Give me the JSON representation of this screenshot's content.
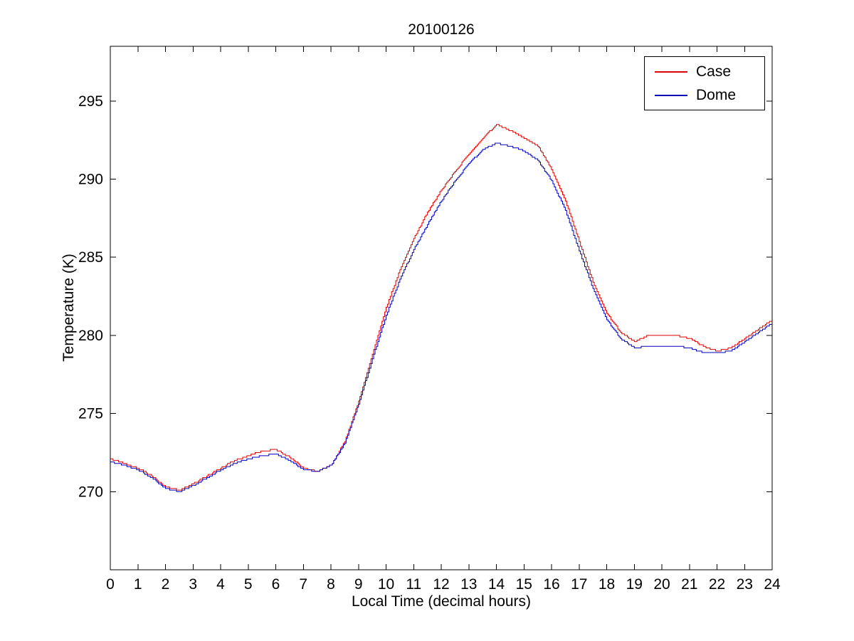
{
  "chart_data": {
    "type": "line",
    "title": "20100126",
    "xlabel": "Local Time (decimal hours)",
    "ylabel": "Temperature (K)",
    "xlim": [
      0,
      24
    ],
    "ylim": [
      265,
      298.5
    ],
    "xticks": [
      0,
      1,
      2,
      3,
      4,
      5,
      6,
      7,
      8,
      9,
      10,
      11,
      12,
      13,
      14,
      15,
      16,
      17,
      18,
      19,
      20,
      21,
      22,
      23,
      24
    ],
    "yticks": [
      270,
      275,
      280,
      285,
      290,
      295
    ],
    "grid": false,
    "legend_position": "top-right",
    "step_quantization_k": 0.1,
    "x": [
      0,
      0.5,
      1,
      1.5,
      2,
      2.5,
      3,
      3.5,
      4,
      4.5,
      5,
      5.5,
      6,
      6.5,
      7,
      7.5,
      8,
      8.5,
      9,
      9.5,
      10,
      10.5,
      11,
      11.5,
      12,
      12.5,
      13,
      13.5,
      14,
      14.5,
      15,
      15.5,
      16,
      16.5,
      17,
      17.5,
      18,
      18.5,
      19,
      19.5,
      20,
      20.5,
      21,
      21.5,
      22,
      22.5,
      23,
      23.5,
      24
    ],
    "series": [
      {
        "name": "Case",
        "color": "#dd0000",
        "values": [
          272.1,
          271.8,
          271.5,
          271.0,
          270.3,
          270.1,
          270.5,
          271.0,
          271.5,
          272.0,
          272.3,
          272.6,
          272.7,
          272.2,
          271.5,
          271.3,
          271.7,
          273.2,
          275.8,
          278.8,
          281.8,
          284.2,
          286.2,
          287.9,
          289.3,
          290.5,
          291.6,
          292.6,
          293.5,
          293.1,
          292.6,
          292.1,
          290.6,
          288.6,
          286.0,
          283.4,
          281.4,
          280.2,
          279.6,
          280.0,
          280.0,
          280.0,
          279.8,
          279.3,
          279.0,
          279.2,
          279.8,
          280.4,
          281.0
        ]
      },
      {
        "name": "Dome",
        "color": "#0000bb",
        "values": [
          271.9,
          271.7,
          271.4,
          270.9,
          270.2,
          270.0,
          270.4,
          270.9,
          271.4,
          271.8,
          272.1,
          272.3,
          272.4,
          272.0,
          271.4,
          271.3,
          271.7,
          273.1,
          275.6,
          278.5,
          281.3,
          283.6,
          285.5,
          287.1,
          288.6,
          289.9,
          291.0,
          291.9,
          292.3,
          292.1,
          291.8,
          291.2,
          289.9,
          288.0,
          285.4,
          283.0,
          281.0,
          279.8,
          279.2,
          279.3,
          279.3,
          279.3,
          279.2,
          278.9,
          278.9,
          279.0,
          279.6,
          280.2,
          280.8
        ]
      }
    ]
  }
}
